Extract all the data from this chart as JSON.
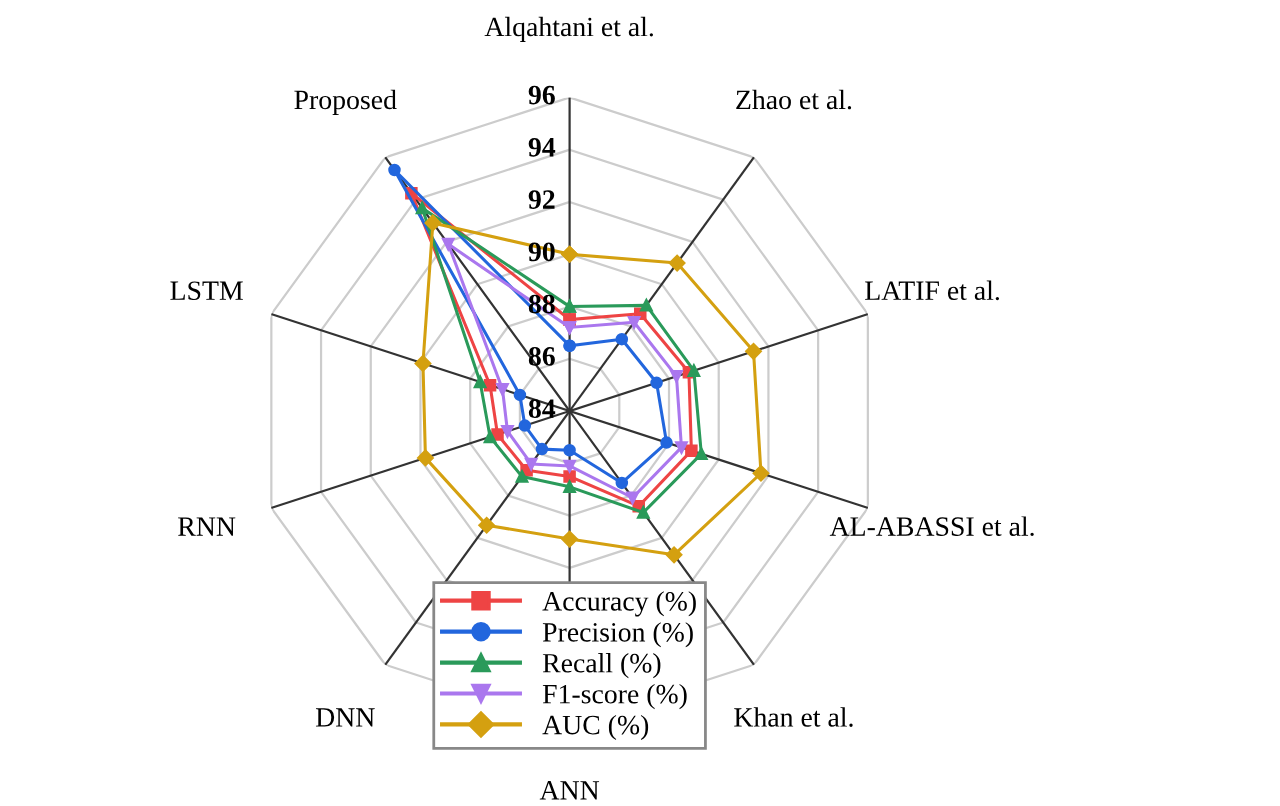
{
  "chart_data": {
    "type": "radar",
    "categories": [
      "Alqahtani et al.",
      "Zhao et al.",
      "LATIF et al.",
      "AL-ABASSI et al.",
      "Khan et al.",
      "ANN",
      "DNN",
      "RNN",
      "LSTM",
      "Proposed"
    ],
    "ylim": [
      84,
      96
    ],
    "yticks": [
      84,
      86,
      88,
      90,
      92,
      94,
      96
    ],
    "grid": true,
    "legend": "bottom",
    "series": [
      {
        "name": "Accuracy (%)",
        "color": "#ee4444",
        "marker": "square",
        "values": [
          87.5,
          88.6,
          88.8,
          88.9,
          88.5,
          86.5,
          86.8,
          86.9,
          87.2,
          94.3
        ]
      },
      {
        "name": "Precision (%)",
        "color": "#2266dd",
        "marker": "circle",
        "values": [
          86.5,
          87.4,
          87.5,
          87.9,
          87.4,
          85.5,
          85.8,
          85.8,
          86.0,
          95.4
        ]
      },
      {
        "name": "Recall (%)",
        "color": "#2a9a5a",
        "marker": "triangle",
        "values": [
          88.0,
          89.0,
          89.0,
          89.3,
          88.8,
          86.9,
          87.1,
          87.2,
          87.6,
          93.6
        ]
      },
      {
        "name": "F1-score (%)",
        "color": "#aa77ee",
        "marker": "triangle_down",
        "values": [
          87.2,
          88.2,
          88.3,
          88.5,
          88.1,
          86.1,
          86.5,
          86.5,
          86.7,
          91.9
        ]
      },
      {
        "name": "AUC (%)",
        "color": "#d4a010",
        "marker": "diamond",
        "values": [
          90.0,
          91.0,
          91.4,
          91.7,
          90.8,
          88.9,
          89.4,
          89.8,
          89.9,
          92.9
        ]
      }
    ]
  }
}
